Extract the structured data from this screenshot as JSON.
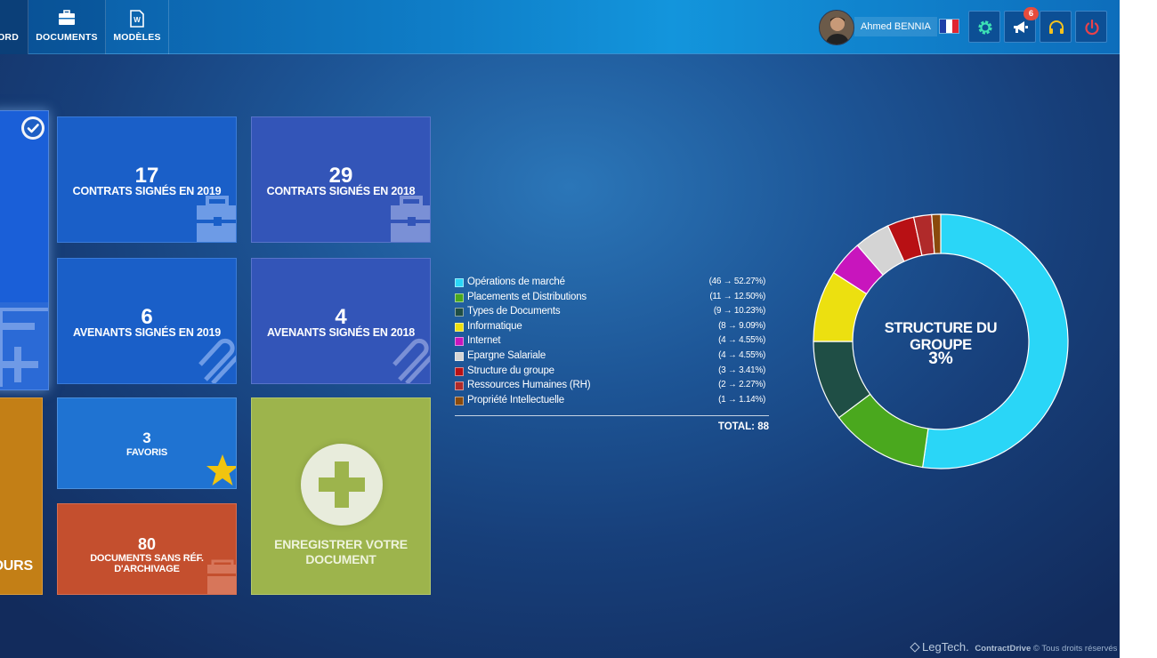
{
  "nav": {
    "dashboard_label": "ORD",
    "documents_label": "DOCUMENTS",
    "models_label": "MODÈLES"
  },
  "user": {
    "name": "Ahmed BENNIA",
    "language": "fr",
    "notification_count": "6"
  },
  "icons": {
    "documents": "briefcase-icon",
    "models": "word-document-icon",
    "settings": "gear-icon",
    "notifications": "megaphone-icon",
    "support": "headset-icon",
    "logout": "power-icon"
  },
  "tiles": {
    "contrats_2019": {
      "value": "17",
      "label": "CONTRATS SIGNÉS EN 2019"
    },
    "contrats_2018": {
      "value": "29",
      "label": "CONTRATS SIGNÉS EN 2018"
    },
    "avenants_2019": {
      "value": "6",
      "label": "AVENANTS SIGNÉS EN 2019"
    },
    "avenants_2018": {
      "value": "4",
      "label": "AVENANTS SIGNÉS EN 2018"
    },
    "favoris": {
      "value": "3",
      "label": "FAVORIS"
    },
    "archivage": {
      "value": "80",
      "label": "DOCUMENTS SANS RÉF. D'ARCHIVAGE"
    },
    "enregistrer": {
      "label": "ENREGISTRER VOTRE DOCUMENT"
    },
    "partial_orange_label": "OURS"
  },
  "colors": {
    "accent_blue": "#1a5fc8",
    "tile_green": "#9db44c",
    "tile_orange": "#c37f16",
    "tile_red": "#c44f2e",
    "star_yellow": "#f1c40f"
  },
  "chart_data": {
    "type": "pie",
    "categories": [
      "Opérations de marché",
      "Placements et Distributions",
      "Types de Documents",
      "Informatique",
      "Internet",
      "Epargne Salariale",
      "Structure du groupe",
      "Ressources Humaines (RH)",
      "Propriété Intellectuelle"
    ],
    "values": [
      46,
      11,
      9,
      8,
      4,
      4,
      3,
      2,
      1
    ],
    "value_labels": [
      "(46 → 52.27%)",
      "(11 → 12.50%)",
      "(9 → 10.23%)",
      "(8 → 9.09%)",
      "(4 → 4.55%)",
      "(4 → 4.55%)",
      "(3 → 3.41%)",
      "(2 → 2.27%)",
      "(1 → 1.14%)"
    ],
    "colors": [
      "#2ad6f7",
      "#4aa81e",
      "#1f4e45",
      "#ece010",
      "#c815bd",
      "#d4d4d4",
      "#b81014",
      "#b02a2a",
      "#8a4a0c"
    ],
    "total_label": "TOTAL: 88",
    "center_title": "STRUCTURE DU GROUPE",
    "center_value": "3%"
  },
  "footer": {
    "brand": "LegTech.",
    "product": "ContractDrive",
    "rights": "© Tous droits réservés"
  }
}
